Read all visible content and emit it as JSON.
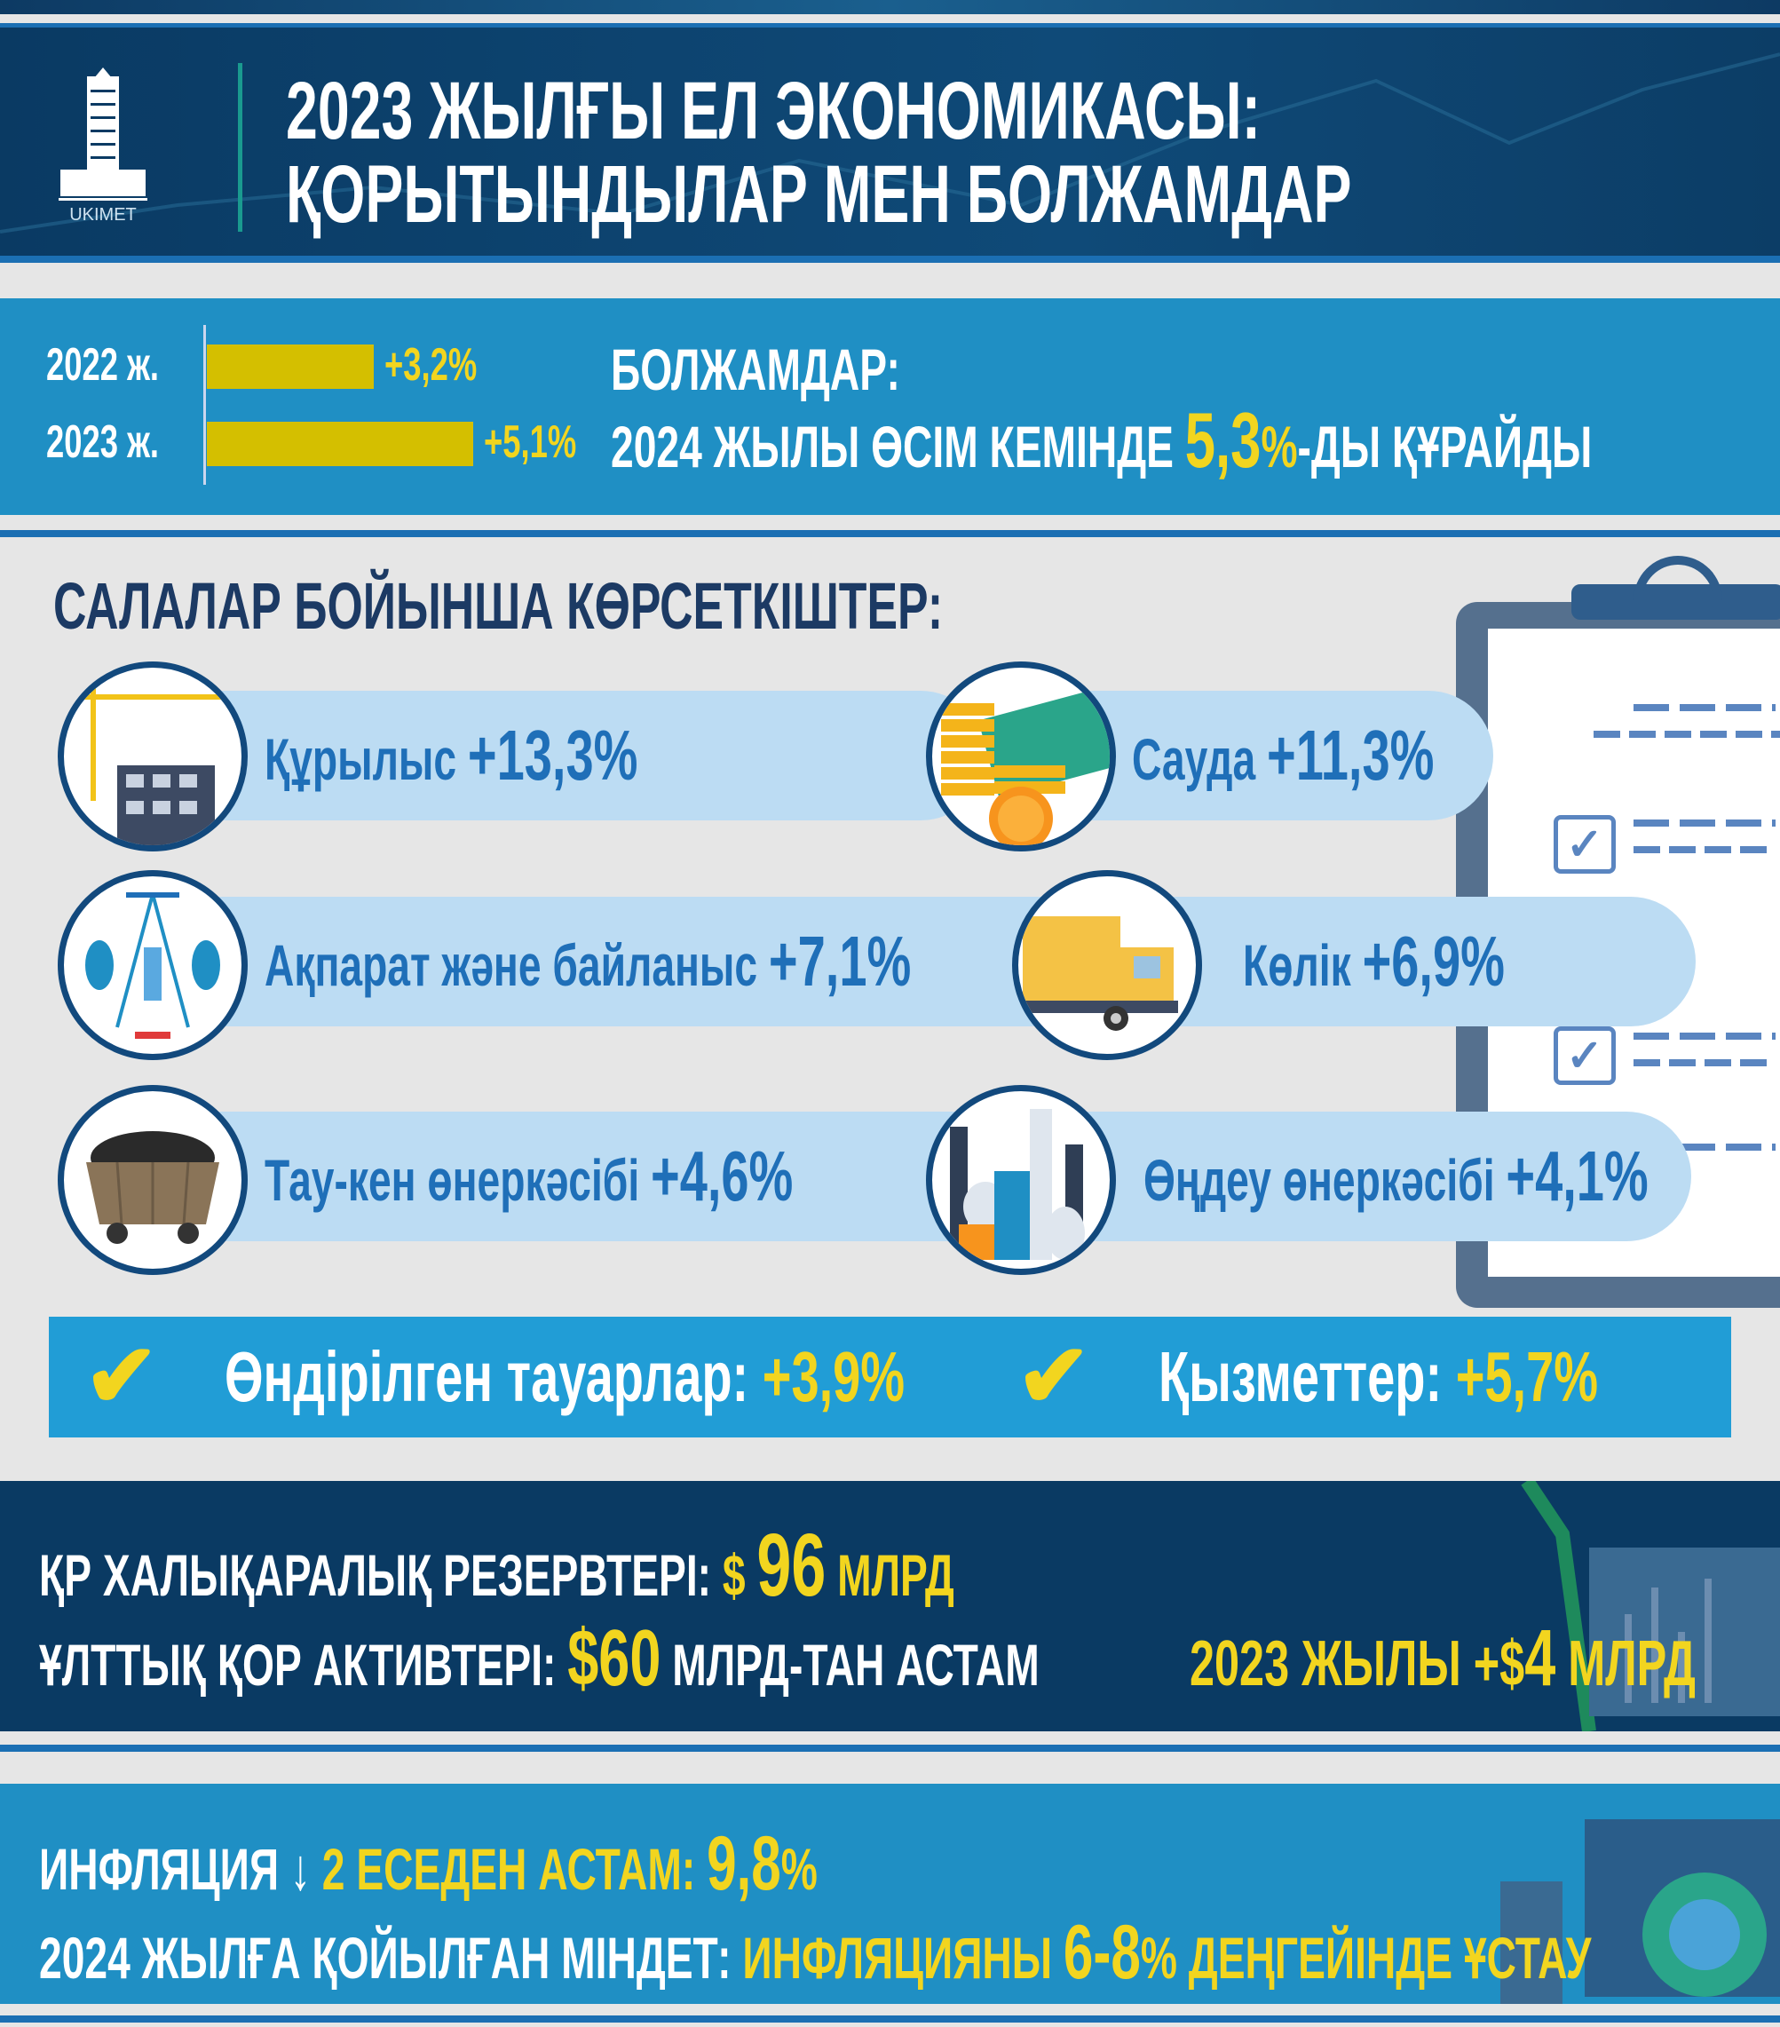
{
  "header": {
    "logo_text": "UKIMET",
    "title_line1": "2023 ЖЫЛҒЫ ЕЛ ЭКОНОМИКАСЫ:",
    "title_line2": "ҚОРЫТЫНДЫЛАР МЕН БОЛЖАМДАР"
  },
  "growth": {
    "bars": [
      {
        "label": "2022 ж.",
        "value": "+3,2%",
        "percent": 3.2
      },
      {
        "label": "2023 ж.",
        "value": "+5,1%",
        "percent": 5.1
      }
    ],
    "forecast_title": "БОЛЖАМДАР:",
    "forecast_pre": "2024 ЖЫЛЫ ӨСІМ КЕМІНДЕ ",
    "forecast_num": "5,3",
    "forecast_pct": "%",
    "forecast_post": "-ДЫ ҚҰРАЙДЫ"
  },
  "sectors": {
    "title": "САЛАЛАР БОЙЫНША КӨРСЕТКІШТЕР:",
    "items": [
      {
        "label": "Құрылыс ",
        "value": "+13,3%",
        "icon": "construction-crane-icon"
      },
      {
        "label": "Сауда ",
        "value": "+11,3%",
        "icon": "coins-money-icon"
      },
      {
        "label": "Ақпарат және байланыс ",
        "value": "+7,1%",
        "icon": "satellite-icon"
      },
      {
        "label": "Көлік  ",
        "value": "+6,9%",
        "icon": "truck-icon"
      },
      {
        "label": "Тау-кен өнеркәсібі ",
        "value": "+4,6%",
        "icon": "coal-cart-icon"
      },
      {
        "label": "Өңдеу өнеркәсібі ",
        "value": "+4,1%",
        "icon": "factory-icon"
      }
    ]
  },
  "checks": [
    {
      "label": "Өндірілген тауарлар: ",
      "value": "+3,9%"
    },
    {
      "label": "Қызметтер: ",
      "value": "+5,7%"
    }
  ],
  "reserves": {
    "line1_label": "ҚР ХАЛЫҚАРАЛЫҚ РЕЗЕРВТЕРІ: ",
    "line1_cur": "$ ",
    "line1_num": "96",
    "line1_unit": " МЛРД",
    "line2_label": "ҰЛТТЫҚ ҚОР АКТИВТЕРІ: ",
    "line2_num": "$60",
    "line2_unit": " МЛРД-ТАН АСТАМ",
    "line2_extra_pre": "2023 ЖЫЛЫ +$",
    "line2_extra_num": "4",
    "line2_extra_unit": " МЛРД"
  },
  "inflation": {
    "line1_label": "ИНФЛЯЦИЯ ",
    "arrow": "↓",
    "line1_mid": " 2 ЕСЕДЕН АСТАМ: ",
    "line1_num": "9,8",
    "line1_pct": "%",
    "line2_label": "2024 ЖЫЛҒА ҚОЙЫЛҒАН МІНДЕТ: ",
    "line2_pre": "ИНФЛЯЦИЯНЫ ",
    "line2_num": "6-8",
    "line2_pct": "%",
    "line2_post": " ДЕҢГЕЙІНДЕ ҰСТАУ"
  },
  "colors": {
    "navy": "#0a3a63",
    "blue": "#1f8fc4",
    "yellow": "#f2d51f",
    "pill": "#bcdcf3",
    "text_blue": "#1f6fb8",
    "bar": "#d4bf00"
  }
}
